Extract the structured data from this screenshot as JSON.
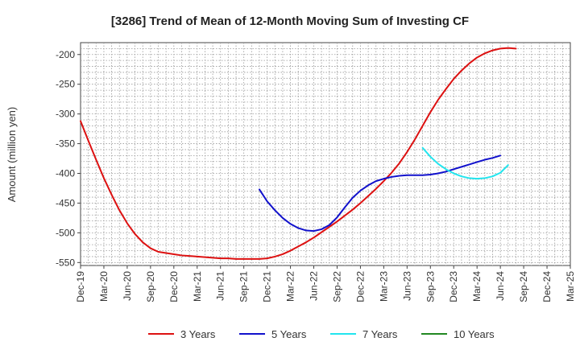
{
  "chart_data": {
    "type": "line",
    "title": "[3286]  Trend of Mean of 12-Month Moving Sum of Investing CF",
    "ylabel": "Amount (million yen)",
    "xlabel": "",
    "x_ticks": [
      "Dec-19",
      "Mar-20",
      "Jun-20",
      "Sep-20",
      "Dec-20",
      "Mar-21",
      "Jun-21",
      "Sep-21",
      "Dec-21",
      "Mar-22",
      "Jun-22",
      "Sep-22",
      "Dec-22",
      "Mar-23",
      "Jun-23",
      "Sep-23",
      "Dec-23",
      "Mar-24",
      "Jun-24",
      "Sep-24",
      "Dec-24",
      "Mar-25"
    ],
    "y_ticks": [
      -200,
      -250,
      -300,
      -350,
      -400,
      -450,
      -500,
      -550
    ],
    "ylim": [
      -555,
      -180
    ],
    "grid": true,
    "legend_position": "bottom",
    "series": [
      {
        "name": "3 Years",
        "color": "#dd1111",
        "values": [
          -312,
          -345,
          -377,
          -408,
          -436,
          -462,
          -484,
          -502,
          -516,
          -526,
          -532,
          -534,
          -536,
          -538,
          -539,
          -540,
          -541,
          -542,
          -543,
          -543,
          -544,
          -544,
          -544,
          -544,
          -543,
          -540,
          -536,
          -530,
          -523,
          -516,
          -508,
          -499,
          -490,
          -481,
          -471,
          -461,
          -450,
          -438,
          -426,
          -413,
          -399,
          -383,
          -364,
          -343,
          -320,
          -297,
          -276,
          -258,
          -241,
          -227,
          -215,
          -205,
          -198,
          -193,
          -190,
          -189,
          -190
        ]
      },
      {
        "name": "5 Years",
        "color": "#1111cc",
        "values": [
          null,
          null,
          null,
          null,
          null,
          null,
          null,
          null,
          null,
          null,
          null,
          null,
          null,
          null,
          null,
          null,
          null,
          null,
          null,
          null,
          null,
          null,
          null,
          -427,
          -447,
          -462,
          -475,
          -485,
          -492,
          -496,
          -497,
          -494,
          -487,
          -474,
          -457,
          -441,
          -429,
          -420,
          -413,
          -409,
          -406,
          -404,
          -403,
          -403,
          -403,
          -402,
          -400,
          -397,
          -393,
          -389,
          -385,
          -381,
          -377,
          -374,
          -370
        ]
      },
      {
        "name": "7 Years",
        "color": "#22e5ee",
        "values": [
          null,
          null,
          null,
          null,
          null,
          null,
          null,
          null,
          null,
          null,
          null,
          null,
          null,
          null,
          null,
          null,
          null,
          null,
          null,
          null,
          null,
          null,
          null,
          null,
          null,
          null,
          null,
          null,
          null,
          null,
          null,
          null,
          null,
          null,
          null,
          null,
          null,
          null,
          null,
          null,
          null,
          null,
          null,
          null,
          -357,
          -372,
          -384,
          -393,
          -400,
          -405,
          -408,
          -409,
          -408,
          -405,
          -399,
          -386
        ]
      },
      {
        "name": "10 Years",
        "color": "#228822",
        "values": []
      }
    ]
  }
}
